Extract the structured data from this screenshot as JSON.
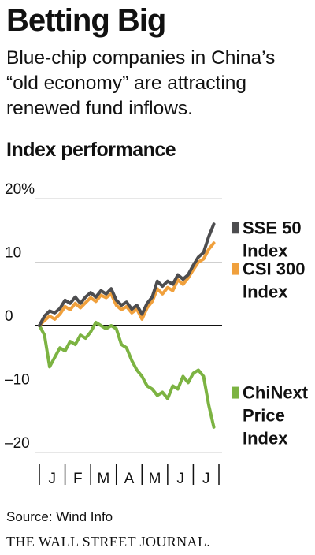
{
  "header": {
    "title": "Betting Big",
    "subtitle": "Blue-chip companies in China’s “old economy” are attracting renewed fund inflows.",
    "section_label": "Index performance"
  },
  "footer": {
    "source": "Source: Wind Info",
    "publisher": "THE WALL STREET JOURNAL."
  },
  "chart_data": {
    "type": "line",
    "title": "Index performance",
    "ylabel": "",
    "xlabel": "",
    "ylim": [
      -20,
      20
    ],
    "y_ticks": [
      {
        "value": 20,
        "label": "20%"
      },
      {
        "value": 10,
        "label": "10"
      },
      {
        "value": 0,
        "label": "0"
      },
      {
        "value": -10,
        "label": "–10"
      },
      {
        "value": -20,
        "label": "–20"
      }
    ],
    "x_months": [
      "J",
      "F",
      "M",
      "A",
      "M",
      "J",
      "J"
    ],
    "series": [
      {
        "name": "SSE 50 Index",
        "label_lines": [
          "SSE 50",
          "Index"
        ],
        "color": "#4d4d4f",
        "x": [
          0,
          0.2,
          0.4,
          0.6,
          0.8,
          1,
          1.2,
          1.4,
          1.6,
          1.8,
          2,
          2.2,
          2.4,
          2.6,
          2.8,
          3,
          3.2,
          3.4,
          3.6,
          3.8,
          4,
          4.2,
          4.4,
          4.6,
          4.8,
          5,
          5.2,
          5.4,
          5.6,
          5.8,
          6,
          6.2,
          6.4,
          6.6,
          6.8
        ],
        "values": [
          0,
          1.5,
          2.3,
          2.0,
          2.7,
          4.0,
          3.5,
          4.5,
          3.5,
          4.5,
          5.2,
          4.5,
          5.5,
          5.0,
          5.8,
          4.0,
          3.2,
          3.7,
          2.6,
          3.2,
          1.8,
          3.5,
          4.5,
          7.0,
          6.2,
          7.0,
          6.5,
          8.0,
          7.3,
          8.0,
          9.5,
          10.8,
          11.5,
          14.0,
          16.0
        ]
      },
      {
        "name": "CSI 300 Index",
        "label_lines": [
          "CSI 300",
          "Index"
        ],
        "color": "#f0a03c",
        "x": [
          0,
          0.2,
          0.4,
          0.6,
          0.8,
          1,
          1.2,
          1.4,
          1.6,
          1.8,
          2,
          2.2,
          2.4,
          2.6,
          2.8,
          3,
          3.2,
          3.4,
          3.6,
          3.8,
          4,
          4.2,
          4.4,
          4.6,
          4.8,
          5,
          5.2,
          5.4,
          5.6,
          5.8,
          6,
          6.2,
          6.4,
          6.6,
          6.8
        ],
        "values": [
          0,
          0.8,
          1.5,
          1.0,
          1.8,
          3.0,
          2.5,
          3.5,
          2.8,
          3.6,
          4.4,
          3.8,
          4.8,
          4.4,
          5.0,
          3.2,
          2.5,
          3.0,
          2.0,
          2.6,
          1.0,
          2.8,
          3.8,
          5.8,
          5.0,
          6.0,
          5.5,
          7.2,
          6.5,
          7.5,
          8.8,
          10.0,
          10.5,
          12.0,
          13.0
        ]
      },
      {
        "name": "ChiNext Price Index",
        "label_lines": [
          "ChiNext",
          "Price",
          "Index"
        ],
        "color": "#7cb342",
        "x": [
          0,
          0.2,
          0.4,
          0.6,
          0.8,
          1,
          1.2,
          1.4,
          1.6,
          1.8,
          2,
          2.2,
          2.4,
          2.6,
          2.8,
          3,
          3.2,
          3.4,
          3.6,
          3.8,
          4,
          4.2,
          4.4,
          4.6,
          4.8,
          5,
          5.2,
          5.4,
          5.6,
          5.8,
          6,
          6.2,
          6.4,
          6.6,
          6.8
        ],
        "values": [
          0,
          -1.5,
          -6.5,
          -5.0,
          -3.5,
          -4.0,
          -2.5,
          -3.0,
          -1.5,
          -2.0,
          -1.0,
          0.5,
          0.0,
          -0.5,
          0.0,
          -0.5,
          -3.0,
          -3.5,
          -5.5,
          -7.0,
          -8.0,
          -9.5,
          -10.0,
          -11.0,
          -10.5,
          -11.5,
          -9.5,
          -10.0,
          -8.0,
          -9.0,
          -7.5,
          -7.0,
          -8.0,
          -12.5,
          -16.0
        ]
      }
    ],
    "grid": false,
    "legend": "right"
  }
}
